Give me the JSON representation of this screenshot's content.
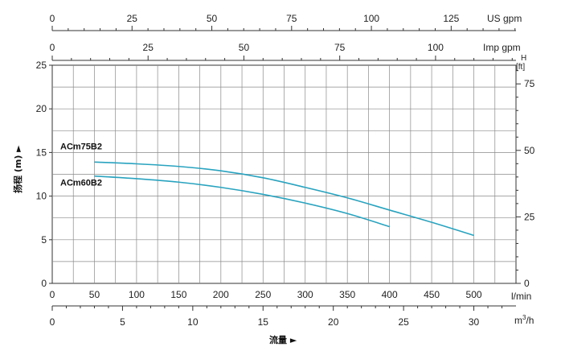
{
  "chart_data": {
    "type": "line",
    "xlabel": "流量 ►",
    "ylabel": "扬程 (m) ►",
    "x_unit": "l/min",
    "y_unit": "m",
    "xlim": [
      0,
      550
    ],
    "ylim": [
      0,
      25
    ],
    "x_ticks": [
      0,
      50,
      100,
      150,
      200,
      250,
      300,
      350,
      400,
      450,
      500
    ],
    "y_ticks": [
      0,
      5,
      10,
      15,
      20,
      25
    ],
    "grid": true,
    "series": [
      {
        "name": "ACm75B2",
        "x": [
          50,
          100,
          150,
          200,
          250,
          300,
          350,
          400,
          450,
          500
        ],
        "y": [
          13.9,
          13.7,
          13.4,
          12.9,
          12.1,
          11.0,
          9.8,
          8.4,
          7.0,
          5.5
        ]
      },
      {
        "name": "ACm60B2",
        "x": [
          50,
          100,
          150,
          200,
          250,
          300,
          350,
          400
        ],
        "y": [
          12.3,
          12.0,
          11.6,
          11.0,
          10.2,
          9.2,
          8.0,
          6.5
        ]
      }
    ],
    "secondary_axes": {
      "us_gpm": {
        "label": "US gpm",
        "ticks": [
          0,
          25,
          50,
          75,
          100,
          125
        ],
        "lpm_per_unit": 3.785
      },
      "imp_gpm": {
        "label": "Imp gpm",
        "ticks": [
          0,
          25,
          50,
          75,
          100
        ],
        "lpm_per_unit": 4.546
      },
      "m3h": {
        "label_main": "m",
        "label_sup": "3",
        "label_tail": "/h",
        "ticks": [
          0,
          5,
          10,
          15,
          20,
          25,
          30
        ],
        "lpm_per_unit": 16.667
      },
      "ft": {
        "label_top": "H",
        "label_unit": "[ft]",
        "ticks": [
          0,
          25,
          50,
          75
        ],
        "m_per_unit": 0.3048
      }
    },
    "colors": {
      "curve": "#29a3bf",
      "grid": "#8a8a8a",
      "axis": "#333333"
    }
  }
}
